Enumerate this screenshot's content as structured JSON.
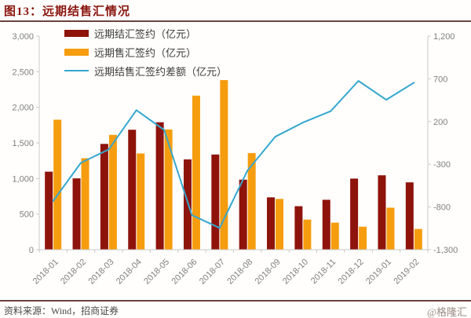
{
  "header": {
    "title": "图13：远期结售汇情况"
  },
  "footer": {
    "source": "资料来源：Wind，招商证券",
    "watermark": "@格隆汇"
  },
  "colors": {
    "title": "#8a140e",
    "rule": "#6b433f",
    "settle_bar": "#8e130b",
    "sale_bar": "#f69d0f",
    "diff_line": "#35a7cf",
    "axis": "#c9c9c9",
    "tick_label": "#7f7f7f"
  },
  "chart_data": {
    "type": "bar",
    "subtype": "grouped bars with line on secondary axis",
    "categories": [
      "2018-01",
      "2018-02",
      "2018-03",
      "2018-04",
      "2018-05",
      "2018-06",
      "2018-07",
      "2018-08",
      "2018-09",
      "2018-10",
      "2018-11",
      "2018-12",
      "2019-01",
      "2019-02"
    ],
    "series": [
      {
        "name": "远期结汇签约（亿元）",
        "type": "bar",
        "axis": "left",
        "color": "#8e130b",
        "values": [
          1096,
          1002,
          1486,
          1685,
          1790,
          1268,
          1337,
          984,
          735,
          611,
          701,
          999,
          1045,
          946
        ]
      },
      {
        "name": "远期售汇签约（亿元）",
        "type": "bar",
        "axis": "left",
        "color": "#f69d0f",
        "values": [
          1826,
          1285,
          1613,
          1352,
          1688,
          2164,
          2382,
          1358,
          713,
          423,
          380,
          323,
          590,
          291
        ]
      },
      {
        "name": "远期结售汇签约差额（亿元）",
        "type": "line",
        "axis": "right",
        "color": "#35a7cf",
        "values": [
          -730,
          -283,
          -127,
          333,
          102,
          -896,
          -1045,
          -374,
          22,
          188,
          321,
          676,
          455,
          655
        ]
      }
    ],
    "left_axis": {
      "min": 0,
      "max": 3000,
      "step": 500,
      "tick_labels": [
        "0",
        "500",
        "1,000",
        "1,500",
        "2,000",
        "2,500",
        "3,000"
      ]
    },
    "right_axis": {
      "min": -1300,
      "max": 1200,
      "step": 500,
      "tick_labels": [
        "-1,300",
        "-800",
        "-300",
        "200",
        "700",
        "1,200"
      ]
    },
    "grid": false,
    "legend_position": "top-left",
    "title": "图13：远期结售汇情况",
    "xlabel": "",
    "ylabel": ""
  }
}
